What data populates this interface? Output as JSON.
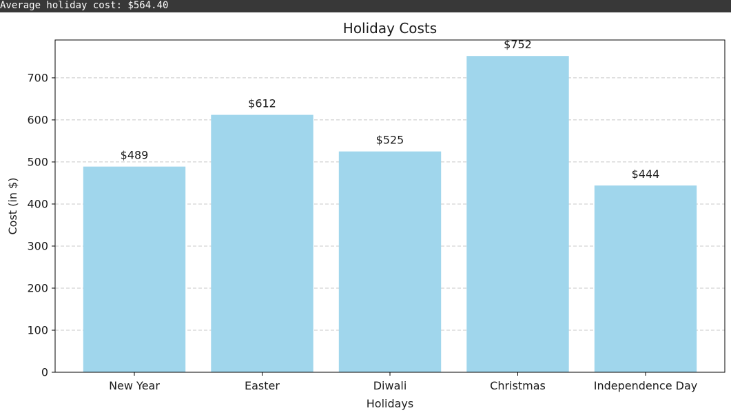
{
  "console": {
    "output": "Average holiday cost: $564.40"
  },
  "chart_data": {
    "type": "bar",
    "title": "Holiday Costs",
    "xlabel": "Holidays",
    "ylabel": "Cost (in $)",
    "categories": [
      "New Year",
      "Easter",
      "Diwali",
      "Christmas",
      "Independence Day"
    ],
    "values": [
      489,
      612,
      525,
      752,
      444
    ],
    "value_labels": [
      "$489",
      "$612",
      "$525",
      "$752",
      "$444"
    ],
    "ylim": [
      0,
      790
    ],
    "yticks": [
      0,
      100,
      200,
      300,
      400,
      500,
      600,
      700
    ],
    "grid": "y-dashed",
    "bar_color": "#a0d6ec",
    "legend": "none"
  }
}
